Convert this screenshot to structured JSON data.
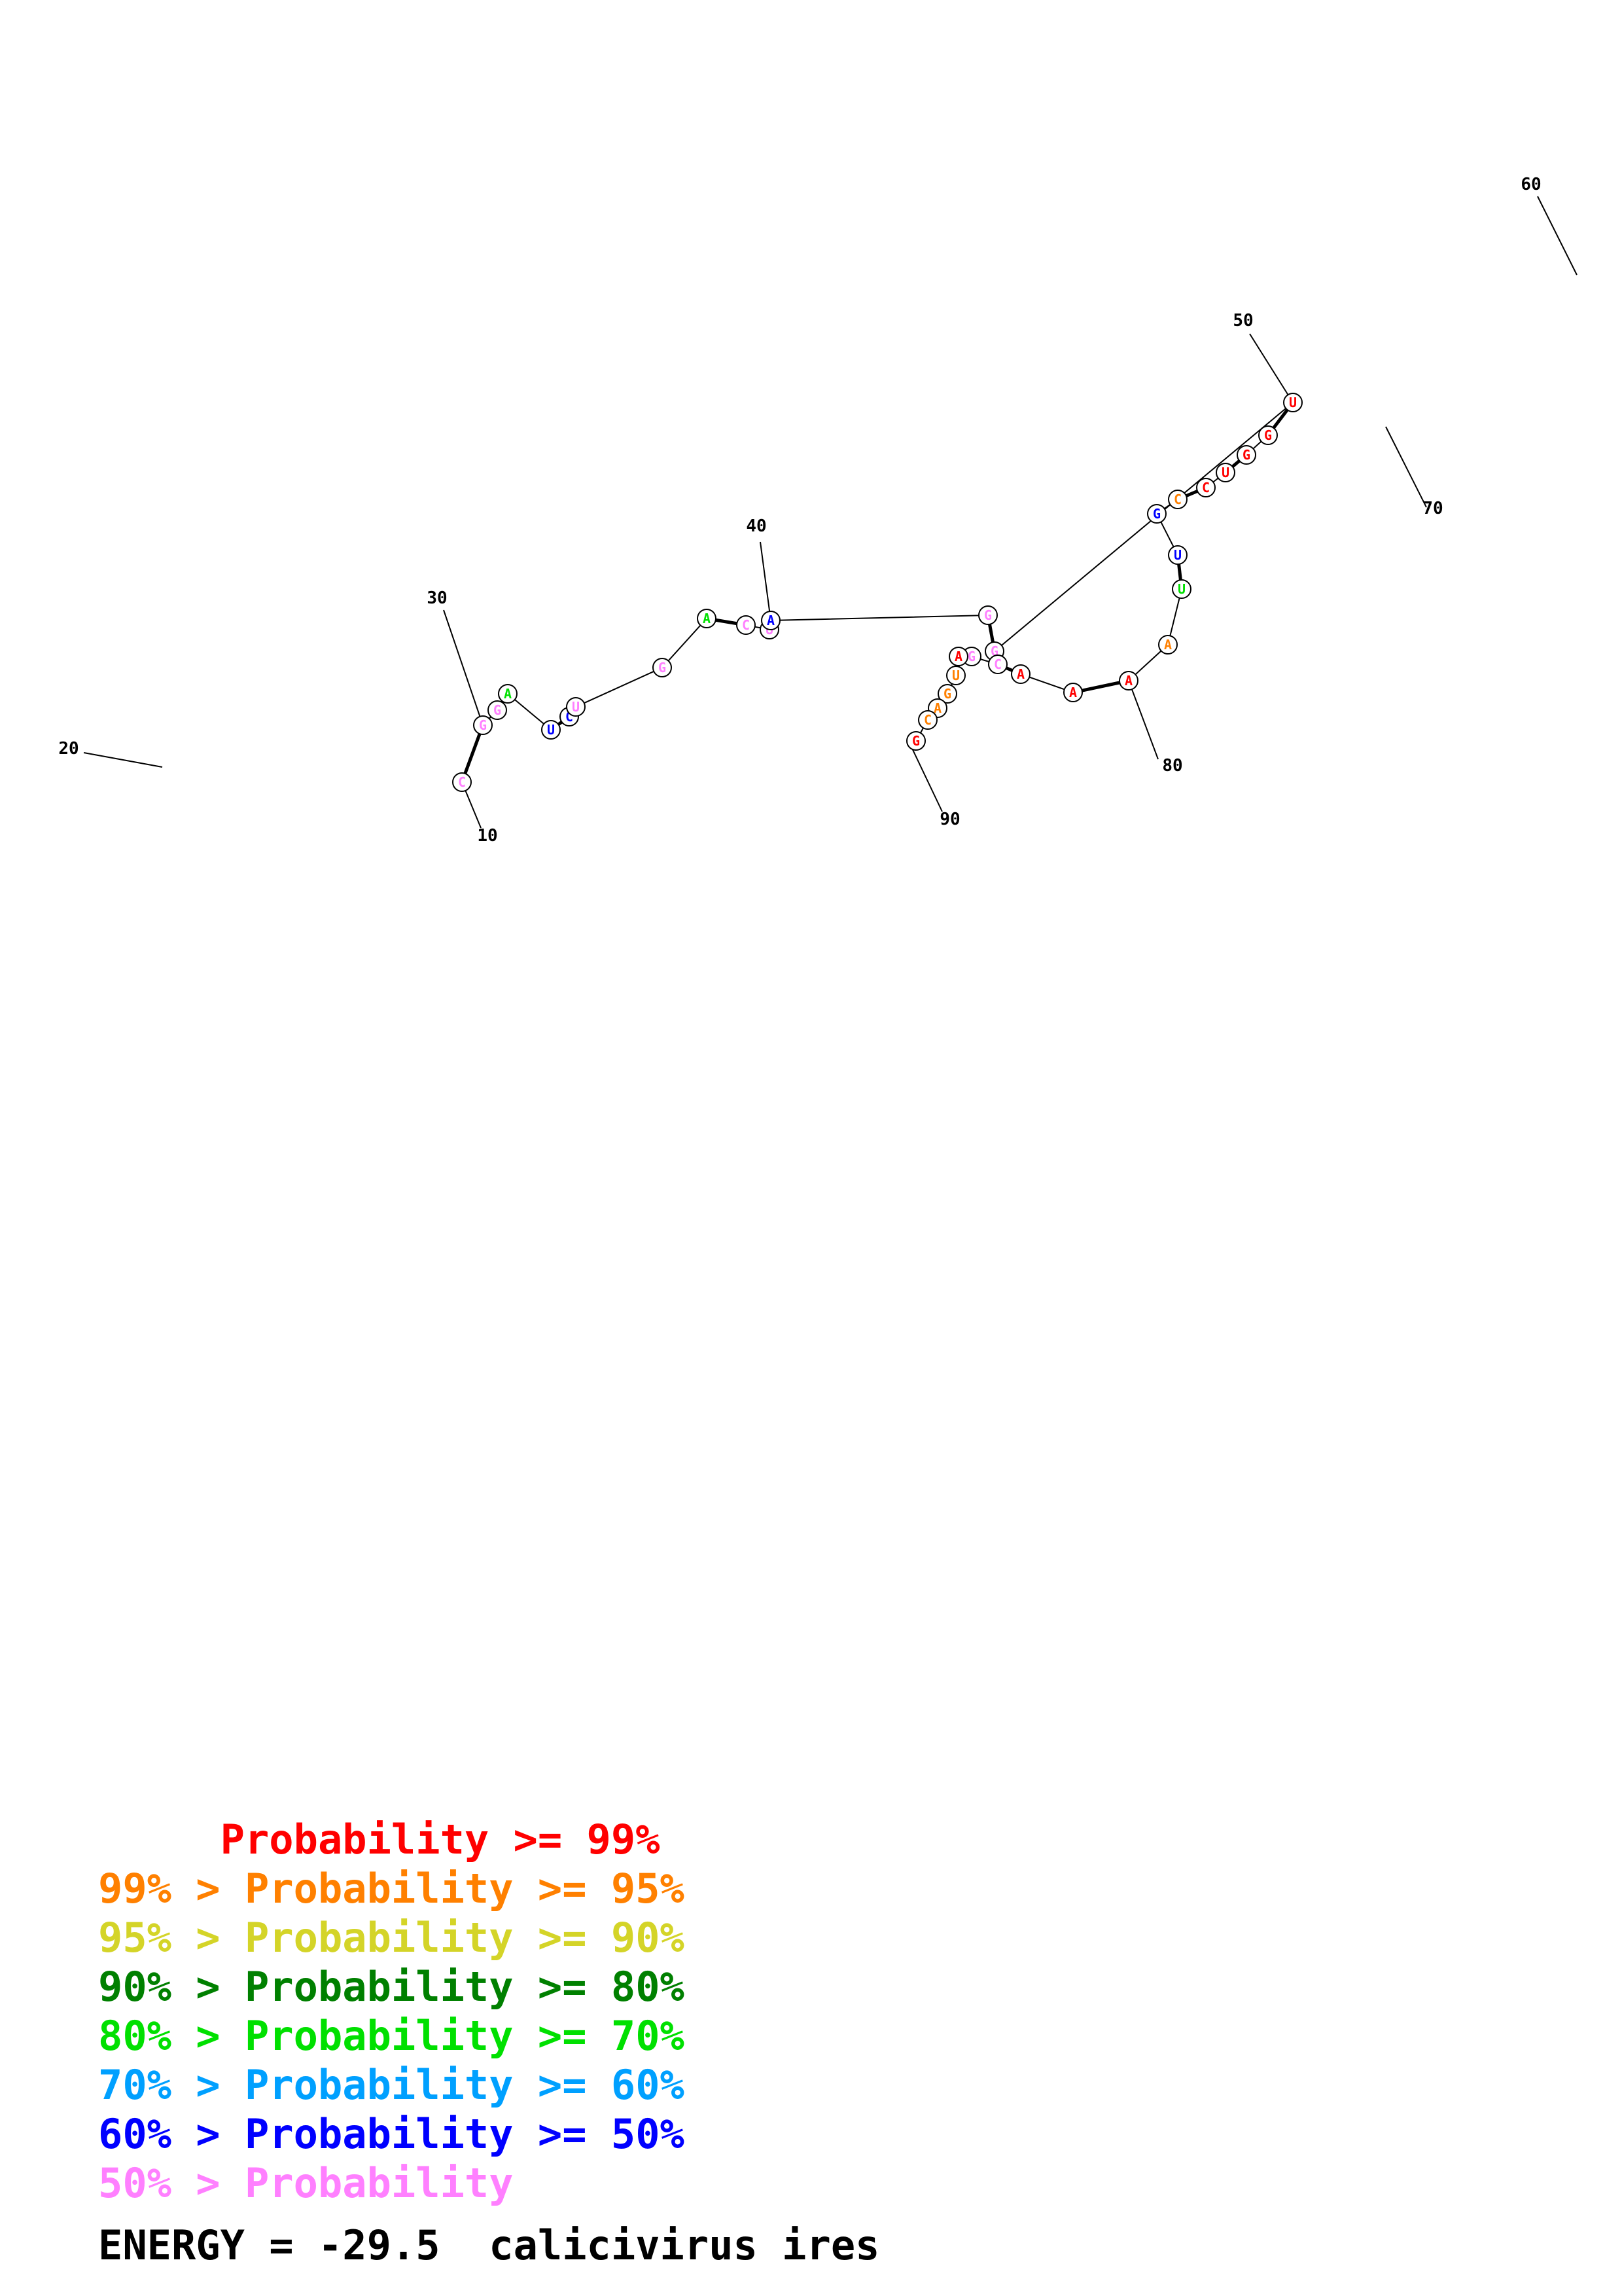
{
  "structure": {
    "colors": {
      "p99": "#ff0000",
      "p95": "#ff8000",
      "p90": "#d4d428",
      "p80": "#008000",
      "p70": "#00e000",
      "p60": "#00a0ff",
      "p50": "#0000ff",
      "plow": "#ff80ff"
    },
    "nucleotides": [
      {
        "letter": "C",
        "color": "plow"
      },
      {
        "letter": "G",
        "color": "plow"
      },
      {
        "letter": "G",
        "color": "plow"
      },
      {
        "letter": "A",
        "color": "p70"
      },
      {
        "letter": "U",
        "color": "p50"
      },
      {
        "letter": "C",
        "color": "p50"
      },
      {
        "letter": "U",
        "color": "plow"
      },
      {
        "letter": "G",
        "color": "plow"
      },
      {
        "letter": "A",
        "color": "p70"
      },
      {
        "letter": "C",
        "color": "plow"
      },
      {
        "letter": "U",
        "color": "plow"
      },
      {
        "letter": "A",
        "color": "p50"
      },
      {
        "letter": "G",
        "color": "plow"
      },
      {
        "letter": "G",
        "color": "plow"
      },
      {
        "letter": "U",
        "color": "p99"
      },
      {
        "letter": "G",
        "color": "p99"
      },
      {
        "letter": "G",
        "color": "p99"
      },
      {
        "letter": "U",
        "color": "p99"
      },
      {
        "letter": "C",
        "color": "p99"
      },
      {
        "letter": "C",
        "color": "p95"
      },
      {
        "letter": "G",
        "color": "p50"
      },
      {
        "letter": "U",
        "color": "p50"
      },
      {
        "letter": "U",
        "color": "p70"
      },
      {
        "letter": "A",
        "color": "p95"
      },
      {
        "letter": "A",
        "color": "p99"
      },
      {
        "letter": "A",
        "color": "p99"
      },
      {
        "letter": "A",
        "color": "p99"
      },
      {
        "letter": "C",
        "color": "plow"
      },
      {
        "letter": "G",
        "color": "plow"
      },
      {
        "letter": "A",
        "color": "p99"
      },
      {
        "letter": "U",
        "color": "p95"
      },
      {
        "letter": "G",
        "color": "p95"
      },
      {
        "letter": "A",
        "color": "p95"
      },
      {
        "letter": "C",
        "color": "p95"
      },
      {
        "letter": "G",
        "color": "p99"
      }
    ],
    "positions": [
      {
        "label": "10"
      },
      {
        "label": "20"
      },
      {
        "label": "30"
      },
      {
        "label": "40"
      },
      {
        "label": "50"
      },
      {
        "label": "60"
      },
      {
        "label": "70"
      },
      {
        "label": "80"
      },
      {
        "label": "90"
      }
    ]
  },
  "legend": [
    {
      "text": "     Probability >= 99%",
      "color": "#ff0000"
    },
    {
      "text": "99% > Probability >= 95%",
      "color": "#ff8000"
    },
    {
      "text": "95% > Probability >= 90%",
      "color": "#d4d428"
    },
    {
      "text": "90% > Probability >= 80%",
      "color": "#008000"
    },
    {
      "text": "80% > Probability >= 70%",
      "color": "#00e000"
    },
    {
      "text": "70% > Probability >= 60%",
      "color": "#00a0ff"
    },
    {
      "text": "60% > Probability >= 50%",
      "color": "#0000ff"
    },
    {
      "text": "50% > Probability",
      "color": "#ff80ff"
    }
  ],
  "energy": {
    "label": "ENERGY = ",
    "value": "-29.5",
    "sequence_name": "calicivirus ires"
  }
}
